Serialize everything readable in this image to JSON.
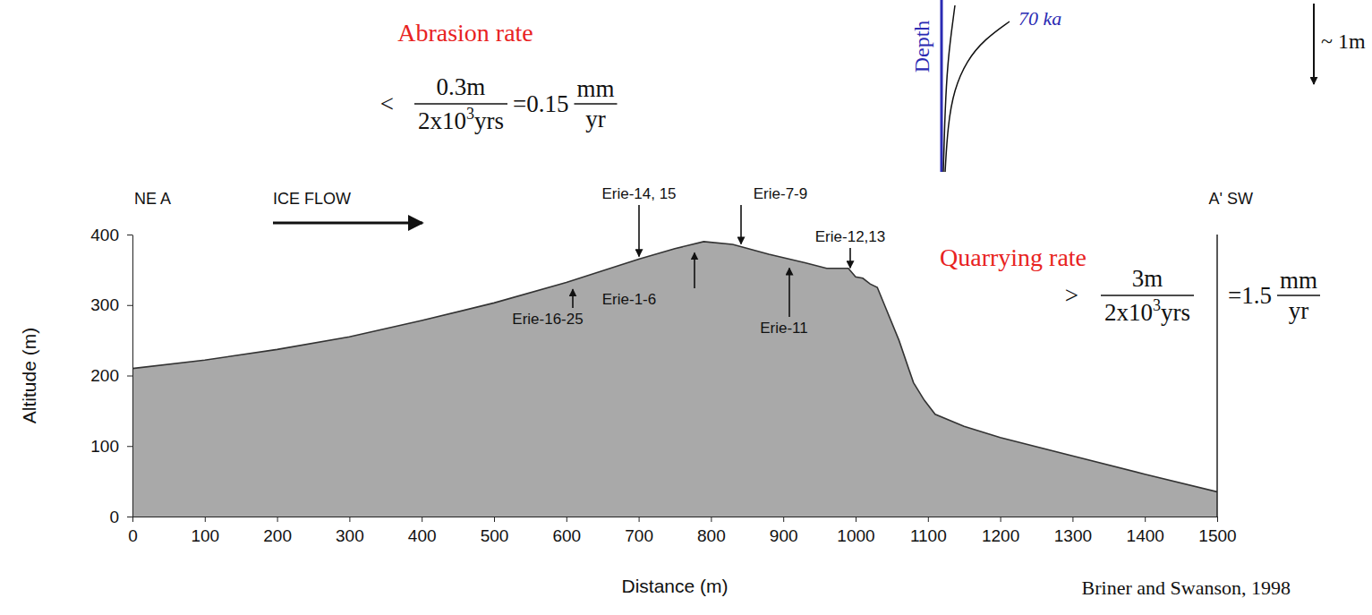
{
  "chart_data": {
    "type": "area",
    "x_label": "Distance (m)",
    "y_label": "Altitude (m)",
    "x": [
      0,
      100,
      200,
      300,
      400,
      500,
      600,
      700,
      750,
      790,
      830,
      880,
      930,
      960,
      990,
      1000,
      1010,
      1020,
      1030,
      1040,
      1060,
      1080,
      1095,
      1110,
      1150,
      1200,
      1300,
      1400,
      1500
    ],
    "values": [
      210,
      222,
      237,
      255,
      278,
      303,
      332,
      365,
      380,
      390,
      386,
      372,
      360,
      352,
      352,
      340,
      338,
      330,
      325,
      300,
      250,
      190,
      165,
      145,
      128,
      112,
      86,
      60,
      35
    ],
    "color": "#a9a9a9",
    "xlim": [
      0,
      1500
    ],
    "xticks": [
      0,
      100,
      200,
      300,
      400,
      500,
      600,
      700,
      800,
      900,
      1000,
      1100,
      1200,
      1300,
      1400,
      1500
    ],
    "ylim": [
      0,
      400
    ],
    "yticks": [
      0,
      100,
      200,
      300,
      400
    ],
    "annotations": {
      "section_start": "NE A",
      "section_end": "A' SW",
      "ice_flow": "ICE FLOW",
      "samples": [
        "Erie-14, 15",
        "Erie-7-9",
        "Erie-12,13",
        "Erie-1-6",
        "Erie-16-25",
        "Erie-11"
      ],
      "abrasion": {
        "title": "Abrasion rate",
        "relation": "<",
        "numerator": "0.3m",
        "denominator": [
          "2x10",
          "3",
          "yrs"
        ],
        "result": "=0.15",
        "unit_numerator": "mm",
        "unit_denominator": "yr"
      },
      "quarrying": {
        "title": "Quarrying rate",
        "relation": ">",
        "numerator": "3m",
        "denominator": [
          "2x10",
          "3",
          "yrs"
        ],
        "result": "=1.5",
        "unit_numerator": "mm",
        "unit_denominator": "yr"
      },
      "inset": {
        "axis_label": "Depth",
        "curve_label": "70 ka",
        "scale_label": "~ 1m"
      },
      "source": "Briner and Swanson, 1998"
    }
  }
}
